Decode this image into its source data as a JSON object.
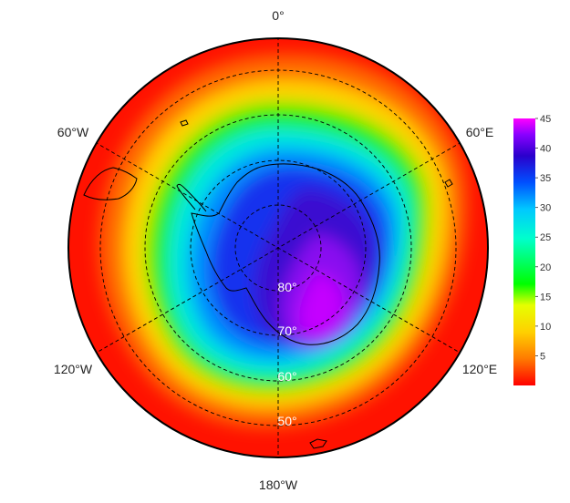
{
  "map": {
    "projection": "south polar stereographic",
    "longitude_labels": {
      "top": "0°",
      "upper_left": "60°W",
      "upper_right": "60°E",
      "lower_left": "120°W",
      "lower_right": "120°E",
      "bottom": "180°W"
    },
    "latitude_labels": [
      "80°",
      "70°",
      "60°",
      "50°"
    ]
  },
  "colorbar": {
    "ticks": [
      "5",
      "10",
      "15",
      "20",
      "25",
      "30",
      "35",
      "40",
      "45"
    ],
    "min": 0,
    "max": 45,
    "colors": [
      "#ff0000",
      "#ff7a00",
      "#ffd000",
      "#e6ff00",
      "#00ff00",
      "#00ffcc",
      "#00c8ff",
      "#0050ff",
      "#2a00cc",
      "#8a00ff",
      "#ff00ff"
    ]
  }
}
